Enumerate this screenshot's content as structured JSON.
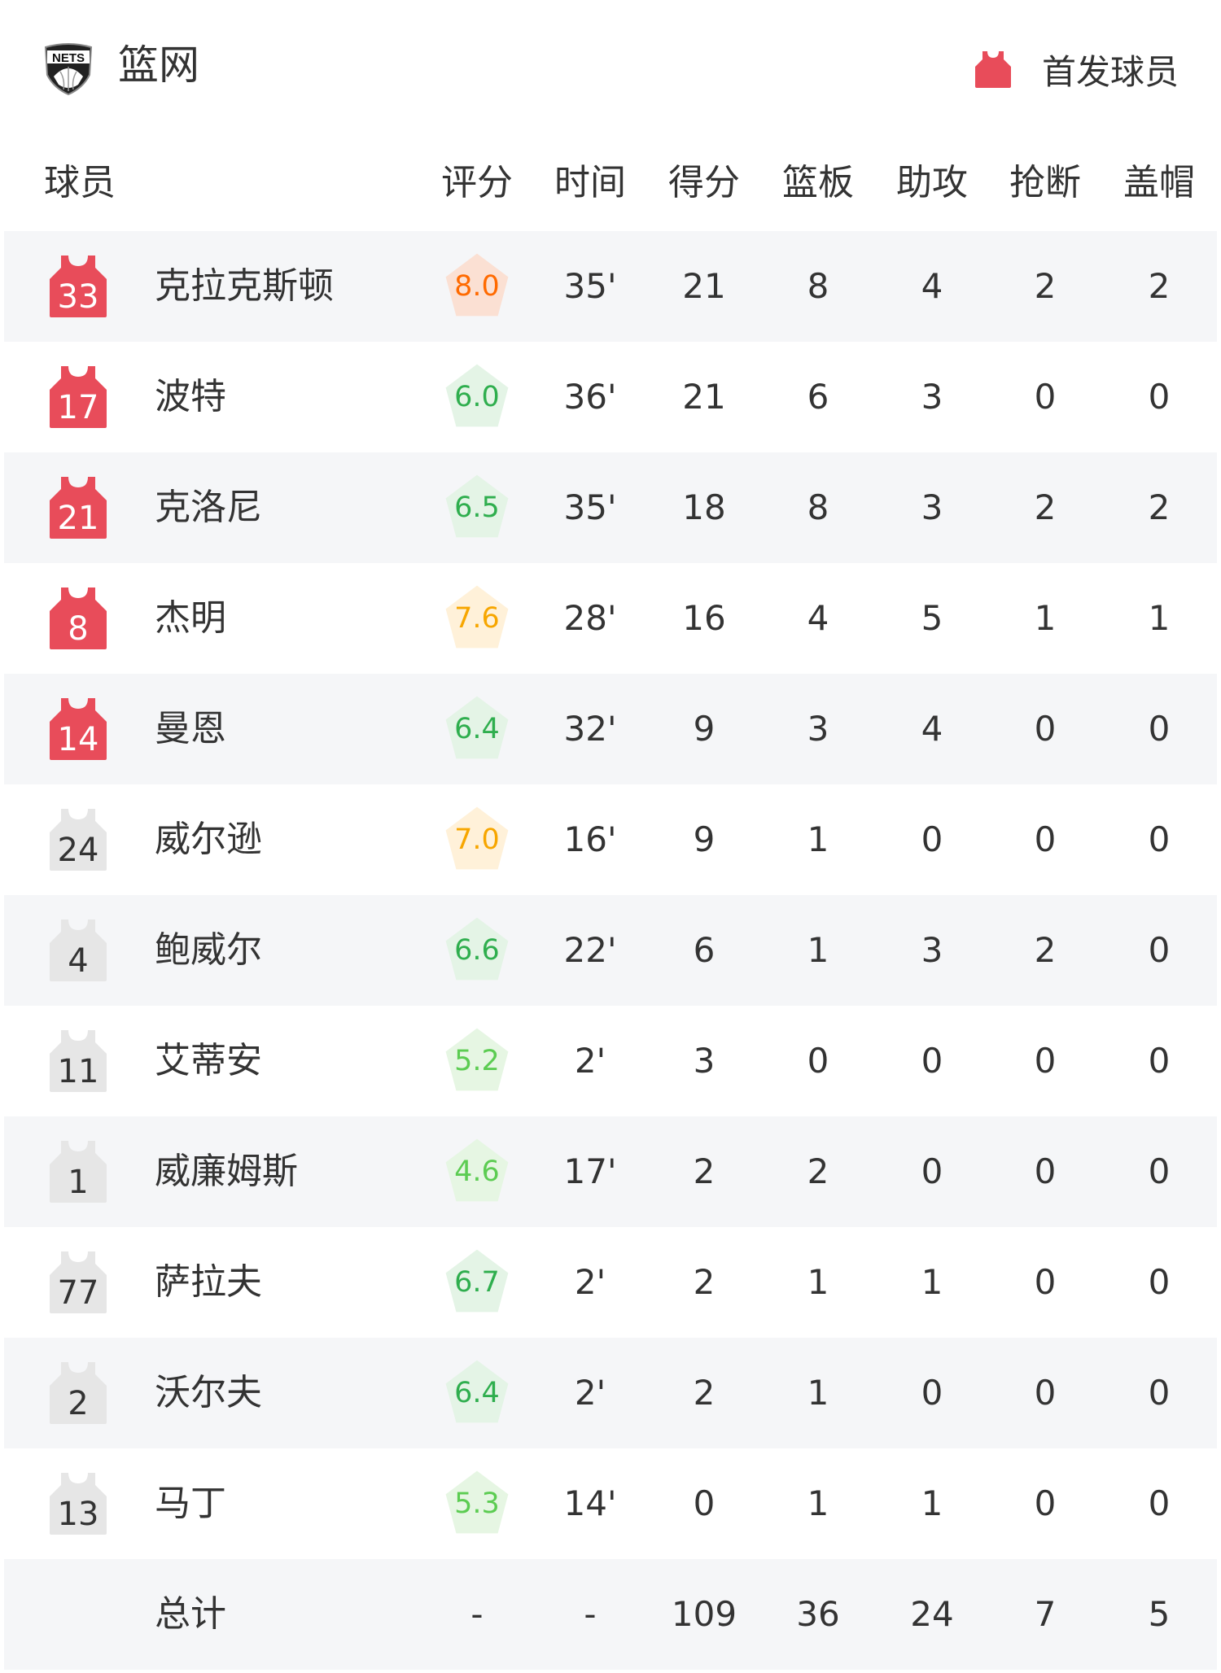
{
  "header": {
    "team_name": "篮网",
    "logo_text": "NETS",
    "legend_label": "首发球员",
    "starter_color": "#e84c5a",
    "bench_color": "#e6e6e6"
  },
  "columns": [
    "球员",
    "评分",
    "时间",
    "得分",
    "篮板",
    "助攻",
    "抢断",
    "盖帽"
  ],
  "rating_colors": {
    "high": {
      "bg": "#fbe0d3",
      "text": "#ff6a00"
    },
    "good": {
      "bg": "#fff1d9",
      "text": "#f7a600"
    },
    "average": {
      "bg": "#e4f4e6",
      "text": "#2fae4e"
    },
    "low": {
      "bg": "#e6f6e3",
      "text": "#5ccc52"
    }
  },
  "players": [
    {
      "number": "33",
      "name": "克拉克斯顿",
      "starter": true,
      "rating": "8.0",
      "tier": "high",
      "time": "35'",
      "pts": "21",
      "reb": "8",
      "ast": "4",
      "stl": "2",
      "blk": "2"
    },
    {
      "number": "17",
      "name": "波特",
      "starter": true,
      "rating": "6.0",
      "tier": "average",
      "time": "36'",
      "pts": "21",
      "reb": "6",
      "ast": "3",
      "stl": "0",
      "blk": "0"
    },
    {
      "number": "21",
      "name": "克洛尼",
      "starter": true,
      "rating": "6.5",
      "tier": "average",
      "time": "35'",
      "pts": "18",
      "reb": "8",
      "ast": "3",
      "stl": "2",
      "blk": "2"
    },
    {
      "number": "8",
      "name": "杰明",
      "starter": true,
      "rating": "7.6",
      "tier": "good",
      "time": "28'",
      "pts": "16",
      "reb": "4",
      "ast": "5",
      "stl": "1",
      "blk": "1"
    },
    {
      "number": "14",
      "name": "曼恩",
      "starter": true,
      "rating": "6.4",
      "tier": "average",
      "time": "32'",
      "pts": "9",
      "reb": "3",
      "ast": "4",
      "stl": "0",
      "blk": "0"
    },
    {
      "number": "24",
      "name": "威尔逊",
      "starter": false,
      "rating": "7.0",
      "tier": "good",
      "time": "16'",
      "pts": "9",
      "reb": "1",
      "ast": "0",
      "stl": "0",
      "blk": "0"
    },
    {
      "number": "4",
      "name": "鲍威尔",
      "starter": false,
      "rating": "6.6",
      "tier": "average",
      "time": "22'",
      "pts": "6",
      "reb": "1",
      "ast": "3",
      "stl": "2",
      "blk": "0"
    },
    {
      "number": "11",
      "name": "艾蒂安",
      "starter": false,
      "rating": "5.2",
      "tier": "low",
      "time": "2'",
      "pts": "3",
      "reb": "0",
      "ast": "0",
      "stl": "0",
      "blk": "0"
    },
    {
      "number": "1",
      "name": "威廉姆斯",
      "starter": false,
      "rating": "4.6",
      "tier": "low",
      "time": "17'",
      "pts": "2",
      "reb": "2",
      "ast": "0",
      "stl": "0",
      "blk": "0"
    },
    {
      "number": "77",
      "name": "萨拉夫",
      "starter": false,
      "rating": "6.7",
      "tier": "average",
      "time": "2'",
      "pts": "2",
      "reb": "1",
      "ast": "1",
      "stl": "0",
      "blk": "0"
    },
    {
      "number": "2",
      "name": "沃尔夫",
      "starter": false,
      "rating": "6.4",
      "tier": "average",
      "time": "2'",
      "pts": "2",
      "reb": "1",
      "ast": "0",
      "stl": "0",
      "blk": "0"
    },
    {
      "number": "13",
      "name": "马丁",
      "starter": false,
      "rating": "5.3",
      "tier": "low",
      "time": "14'",
      "pts": "0",
      "reb": "1",
      "ast": "1",
      "stl": "0",
      "blk": "0"
    }
  ],
  "totals": {
    "label": "总计",
    "rating": "-",
    "time": "-",
    "pts": "109",
    "reb": "36",
    "ast": "24",
    "stl": "7",
    "blk": "5"
  }
}
